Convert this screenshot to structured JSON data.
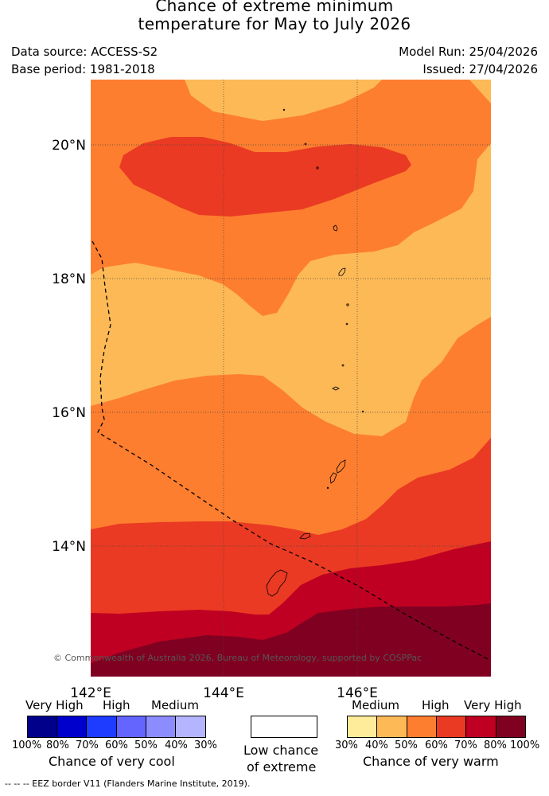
{
  "title_line1": "Chance of extreme minimum",
  "title_line2": "temperature for May to July 2026",
  "data_source": "Data source: ACCESS-S2",
  "base_period": "Base period: 1981-2018",
  "model_run": "Model Run: 25/04/2026",
  "issued": "Issued: 27/04/2026",
  "lat_labels": [
    "20°N",
    "18°N",
    "16°N",
    "14°N"
  ],
  "lon_labels": [
    "142°E",
    "144°E",
    "146°E"
  ],
  "copyright": "© Commonwealth of Australia 2026, Bureau of Meteorology, supported by COSPPac",
  "colors": {
    "very_cool_100": "#00008b",
    "very_cool_80": "#0000cd",
    "very_cool_70": "#1e3cff",
    "very_cool_60": "#6464ff",
    "very_cool_50": "#8c8cff",
    "very_cool_40": "#b4b4ff",
    "low": "#ffffff",
    "warm_30": "#ffec9b",
    "warm_40": "#fdb956",
    "warm_50": "#fd7e2f",
    "warm_60": "#ea3a23",
    "warm_70": "#bf0022",
    "warm_80": "#800021"
  },
  "legend": {
    "cool_categories": [
      "Very High",
      "High",
      "Medium"
    ],
    "cool_ticks": [
      "100%",
      "80%",
      "70%",
      "60%",
      "50%",
      "40%",
      "30%"
    ],
    "cool_caption": "Chance of very cool",
    "low_caption_line1": "Low chance",
    "low_caption_line2": "of extreme",
    "warm_categories": [
      "Medium",
      "High",
      "Very High"
    ],
    "warm_ticks": [
      "30%",
      "40%",
      "50%",
      "60%",
      "70%",
      "80%",
      "100%"
    ],
    "warm_caption": "Chance of very warm"
  },
  "footnote": "--  --  -- EEZ border V11 (Flanders Marine Institute, 2019)."
}
